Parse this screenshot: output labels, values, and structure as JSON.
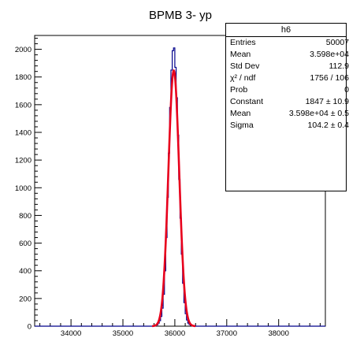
{
  "chart_data": {
    "type": "histogram",
    "title": "BPMB 3- yp",
    "xlabel": "",
    "ylabel": "",
    "xlim": [
      33300,
      38900
    ],
    "ylim": [
      0,
      2100
    ],
    "x_ticks": [
      34000,
      35000,
      36000,
      37000,
      38000
    ],
    "y_ticks": [
      0,
      200,
      400,
      600,
      800,
      1000,
      1200,
      1400,
      1600,
      1800,
      2000
    ],
    "grid": false,
    "bin_width": 25,
    "histogram": {
      "name": "h6",
      "color": "#00008b",
      "bins_x": [
        35600,
        35625,
        35650,
        35675,
        35700,
        35725,
        35750,
        35775,
        35800,
        35825,
        35850,
        35875,
        35900,
        35925,
        35950,
        35975,
        36000,
        36025,
        36050,
        36075,
        36100,
        36125,
        36150,
        36175,
        36200,
        36225,
        36250,
        36275,
        36300,
        36325,
        36350
      ],
      "counts": [
        2,
        5,
        10,
        22,
        40,
        70,
        130,
        230,
        400,
        640,
        930,
        1250,
        1580,
        1850,
        1990,
        2010,
        1870,
        1650,
        1380,
        1060,
        780,
        520,
        310,
        170,
        90,
        45,
        22,
        12,
        6,
        3,
        1
      ]
    },
    "fit": {
      "function": "gaus",
      "color": "#e8001c",
      "constant": 1847,
      "mean": 35980,
      "sigma": 104.2
    },
    "stats_box": {
      "title": "h6",
      "rows": [
        {
          "label": "Entries",
          "value": "50007"
        },
        {
          "label": "Mean",
          "value": "3.598e+04"
        },
        {
          "label": "Std Dev",
          "value": "112.9"
        },
        {
          "label": "χ² / ndf",
          "value": "1756 / 106"
        },
        {
          "label": "Prob",
          "value": "0"
        },
        {
          "label": "Constant",
          "value": "1847 ± 10.9"
        },
        {
          "label": "Mean",
          "value": "3.598e+04 ± 0.5"
        },
        {
          "label": "Sigma",
          "value": "104.2 ± 0.4"
        }
      ]
    }
  }
}
